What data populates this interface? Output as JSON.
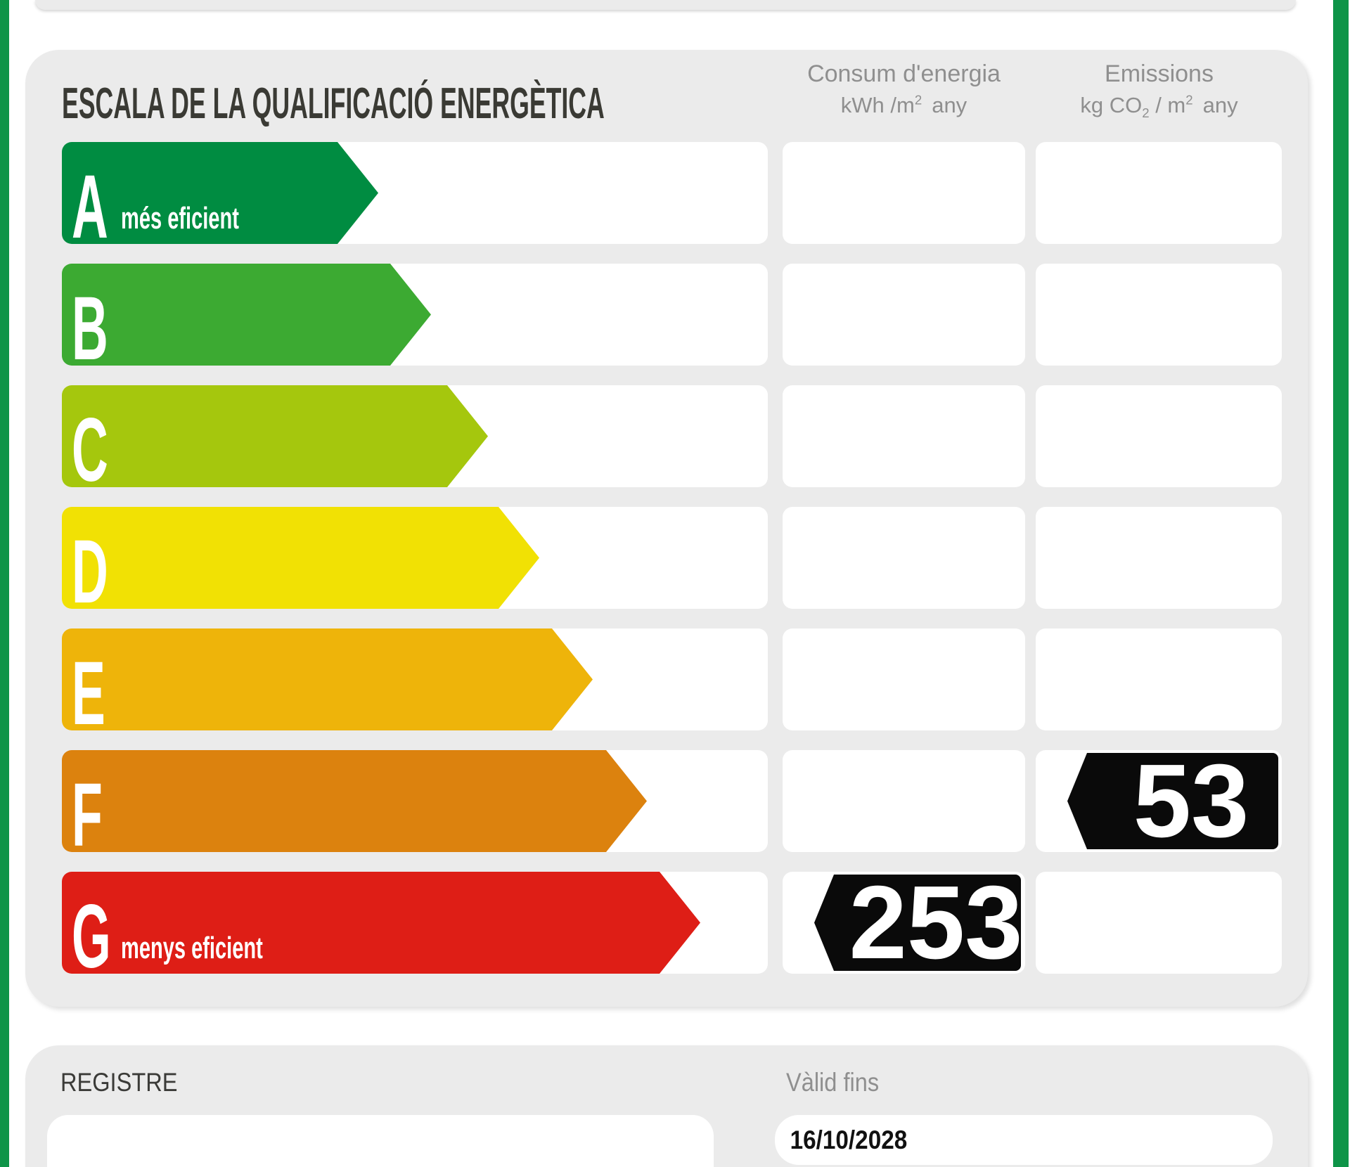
{
  "colors": {
    "accent_green": "#0e9448",
    "panel_bg": "#ebebeb",
    "value_badge": "#0a0a0a"
  },
  "scale_panel": {
    "title": "ESCALA DE LA QUALIFICACIÓ ENERGÈTICA",
    "columns": {
      "consum": {
        "title": "Consum d'energia",
        "unit_main": "kWh /m",
        "unit_sup": "2",
        "unit_tail": "any"
      },
      "emissions": {
        "title": "Emissions",
        "unit_main": "kg CO",
        "unit_sub": "2",
        "unit_mid": " / m",
        "unit_sup": "2",
        "unit_tail": "any"
      }
    },
    "ratings": [
      {
        "letter": "A",
        "qualifier": "més eficient",
        "color": "#008c41"
      },
      {
        "letter": "B",
        "qualifier": "",
        "color": "#3caa32"
      },
      {
        "letter": "C",
        "qualifier": "",
        "color": "#a5c70d"
      },
      {
        "letter": "D",
        "qualifier": "",
        "color": "#f1e104"
      },
      {
        "letter": "E",
        "qualifier": "",
        "color": "#eeb40a"
      },
      {
        "letter": "F",
        "qualifier": "",
        "color": "#dc820e"
      },
      {
        "letter": "G",
        "qualifier": "menys eficient",
        "color": "#de1e16"
      }
    ],
    "values": {
      "consum": {
        "value": "253",
        "rating": "G"
      },
      "emissions": {
        "value": "53",
        "rating": "F"
      }
    }
  },
  "registre": {
    "label": "REGISTRE",
    "valid_label": "Vàlid fins",
    "valid_value": "16/10/2028"
  },
  "chart_data": {
    "type": "bar",
    "title": "ESCALA DE LA QUALIFICACIÓ ENERGÈTICA",
    "categories": [
      "A",
      "B",
      "C",
      "D",
      "E",
      "F",
      "G"
    ],
    "series": [
      {
        "name": "Consum d'energia kWh/m2 any",
        "values": [
          null,
          null,
          null,
          null,
          null,
          null,
          253
        ]
      },
      {
        "name": "Emissions kg CO2/m2 any",
        "values": [
          null,
          null,
          null,
          null,
          null,
          53,
          null
        ]
      }
    ],
    "annotations": [
      "A = més eficient",
      "G = menys eficient",
      "Vàlid fins 16/10/2028"
    ],
    "legend_position": "top",
    "grid": false
  }
}
